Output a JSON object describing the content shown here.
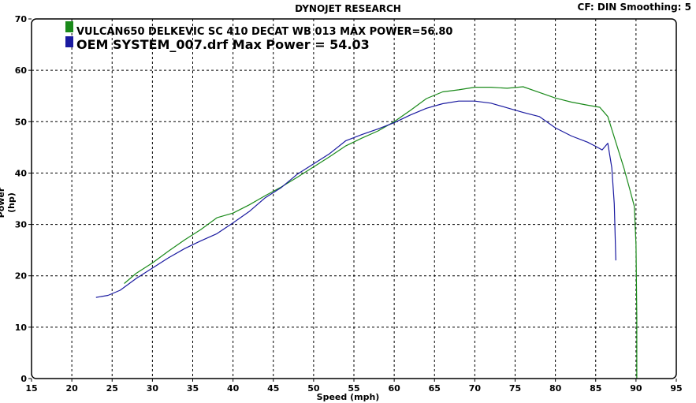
{
  "header": {
    "title": "DYNOJET RESEARCH",
    "cf_smoothing": "CF: DIN  Smoothing: 5"
  },
  "colors": {
    "series_green": "#1a8a1a",
    "series_blue": "#1a1aa0",
    "grid": "#000000",
    "background": "#ffffff"
  },
  "chart_data": {
    "type": "line",
    "title": "DYNOJET RESEARCH",
    "xlabel": "Speed (mph)",
    "ylabel": "Power (hp)",
    "xlim": [
      15,
      95
    ],
    "ylim": [
      0,
      70
    ],
    "xticks": [
      15,
      20,
      25,
      30,
      35,
      40,
      45,
      50,
      55,
      60,
      65,
      70,
      75,
      80,
      85,
      90,
      95
    ],
    "yticks": [
      0,
      10,
      20,
      30,
      40,
      50,
      60,
      70
    ],
    "grid": true,
    "legend_placement": "top-left",
    "series": [
      {
        "name": "VULCAN650 DELKEVIC SC 410 DECAT WB 013 MAX POWER=56.80",
        "color": "#1a8a1a",
        "points": [
          [
            26.5,
            18.5
          ],
          [
            28,
            20.5
          ],
          [
            30,
            22.5
          ],
          [
            32,
            24.8
          ],
          [
            34,
            27
          ],
          [
            36,
            29
          ],
          [
            38,
            31.3
          ],
          [
            40,
            32.2
          ],
          [
            42,
            33.8
          ],
          [
            44,
            35.6
          ],
          [
            46,
            37.3
          ],
          [
            48,
            39.2
          ],
          [
            50,
            41.2
          ],
          [
            52,
            43.2
          ],
          [
            54,
            45.3
          ],
          [
            56,
            46.8
          ],
          [
            58,
            48.2
          ],
          [
            60,
            50
          ],
          [
            62,
            52.2
          ],
          [
            64,
            54.5
          ],
          [
            66,
            55.8
          ],
          [
            68,
            56.2
          ],
          [
            70,
            56.7
          ],
          [
            72,
            56.7
          ],
          [
            74,
            56.5
          ],
          [
            76,
            56.8
          ],
          [
            78,
            55.7
          ],
          [
            80,
            54.6
          ],
          [
            82,
            53.8
          ],
          [
            84,
            53.2
          ],
          [
            85.5,
            52.8
          ],
          [
            86.5,
            51
          ],
          [
            87.5,
            46
          ],
          [
            88.5,
            41
          ],
          [
            89.2,
            37
          ],
          [
            89.8,
            33.5
          ],
          [
            90,
            26
          ],
          [
            90.1,
            12
          ],
          [
            90.1,
            0
          ]
        ]
      },
      {
        "name": "OEM SYSTEM_007.drf Max Power = 54.03",
        "color": "#1a1aa0",
        "points": [
          [
            23,
            15.8
          ],
          [
            24.5,
            16.2
          ],
          [
            26,
            17.2
          ],
          [
            28,
            19.5
          ],
          [
            30,
            21.5
          ],
          [
            32,
            23.5
          ],
          [
            34,
            25.3
          ],
          [
            36,
            26.8
          ],
          [
            38,
            28.2
          ],
          [
            40,
            30.3
          ],
          [
            42,
            32.5
          ],
          [
            44,
            35.2
          ],
          [
            46,
            37.2
          ],
          [
            48,
            39.8
          ],
          [
            50,
            41.8
          ],
          [
            52,
            43.8
          ],
          [
            54,
            46.3
          ],
          [
            56,
            47.5
          ],
          [
            58,
            48.6
          ],
          [
            60,
            49.8
          ],
          [
            62,
            51.3
          ],
          [
            64,
            52.6
          ],
          [
            66,
            53.5
          ],
          [
            68,
            54
          ],
          [
            70,
            54
          ],
          [
            72,
            53.6
          ],
          [
            74,
            52.7
          ],
          [
            76,
            51.8
          ],
          [
            78,
            51
          ],
          [
            80,
            48.8
          ],
          [
            82,
            47.2
          ],
          [
            84,
            46
          ],
          [
            85,
            45.2
          ],
          [
            85.8,
            44.5
          ],
          [
            86.5,
            45.8
          ],
          [
            87,
            41
          ],
          [
            87.3,
            34
          ],
          [
            87.5,
            23
          ]
        ]
      }
    ]
  }
}
